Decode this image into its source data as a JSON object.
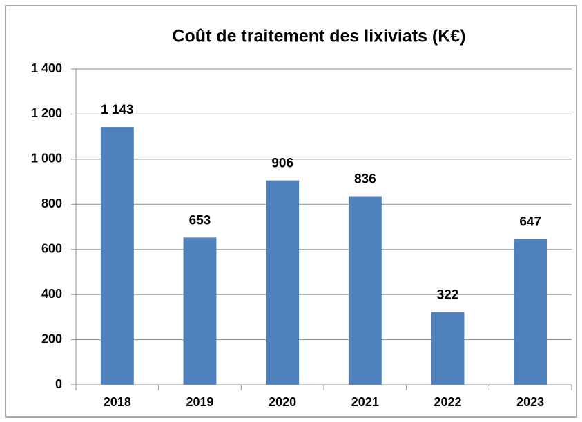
{
  "chart_data": {
    "type": "bar",
    "title": "Coût de traitement des lixiviats (K€)",
    "categories": [
      "2018",
      "2019",
      "2020",
      "2021",
      "2022",
      "2023"
    ],
    "values": [
      1143,
      653,
      906,
      836,
      322,
      647
    ],
    "value_labels": [
      "1 143",
      "653",
      "906",
      "836",
      "322",
      "647"
    ],
    "color": "#4f81bd",
    "ylim": [
      0,
      1400
    ],
    "yticks": [
      0,
      200,
      400,
      600,
      800,
      {
        "value": 1000,
        "label": "1 000"
      },
      {
        "value": 1200,
        "label": "1 200"
      },
      {
        "value": 1400,
        "label": "1 400"
      }
    ],
    "grid": true
  }
}
